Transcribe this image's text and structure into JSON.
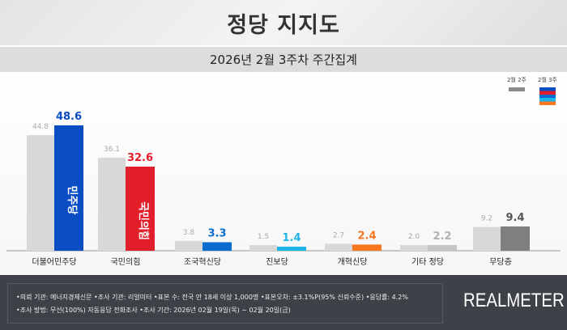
{
  "header": {
    "title": "정당 지지도",
    "subtitle": "2026년 2월 3주차 주간집계"
  },
  "chart_data": {
    "type": "bar",
    "categories": [
      "더불어민주당",
      "국민의힘",
      "조국혁신당",
      "진보당",
      "개혁신당",
      "기타 정당",
      "무당층"
    ],
    "series": [
      {
        "name": "2월 2주",
        "values": [
          44.8,
          36.1,
          3.8,
          1.5,
          2.7,
          2.0,
          9.2
        ],
        "color": "#d8d8d8"
      },
      {
        "name": "2월 3주",
        "values": [
          48.6,
          32.6,
          3.3,
          1.4,
          2.4,
          2.2,
          9.4
        ],
        "colors": [
          "#0b4dc2",
          "#e31e2b",
          "#0b6ccf",
          "#1eb5e8",
          "#f77821",
          "#c4c4c4",
          "#7f7f7f"
        ],
        "label_colors": [
          "#0b4dc2",
          "#e31e2b",
          "#0b6ccf",
          "#1eb5e8",
          "#f77821",
          "#b0b0b0",
          "#555555"
        ]
      }
    ],
    "bar_logos": {
      "0": "민주당",
      "1": "국민의힘"
    },
    "ylim": [
      0,
      50
    ],
    "grid": false,
    "legend": "top-right"
  },
  "legend": {
    "prev": "2월 2주",
    "curr": "2월 3주"
  },
  "footer": {
    "line1": "•의뢰 기관: 에너지경제신문  •조사 기관: 리얼미터 •표본 수: 전국 만 18세 이상 1,000명 •표본오차: ±3.1%P(95% 신뢰수준) •응답률: 4.2%",
    "line2": "•조사 방법: 무선(100%) 자동응답 전화조사 •조사 기간: 2026년 02월 19일(목) ~ 02월 20일(금)",
    "logo": "REALMETER"
  }
}
